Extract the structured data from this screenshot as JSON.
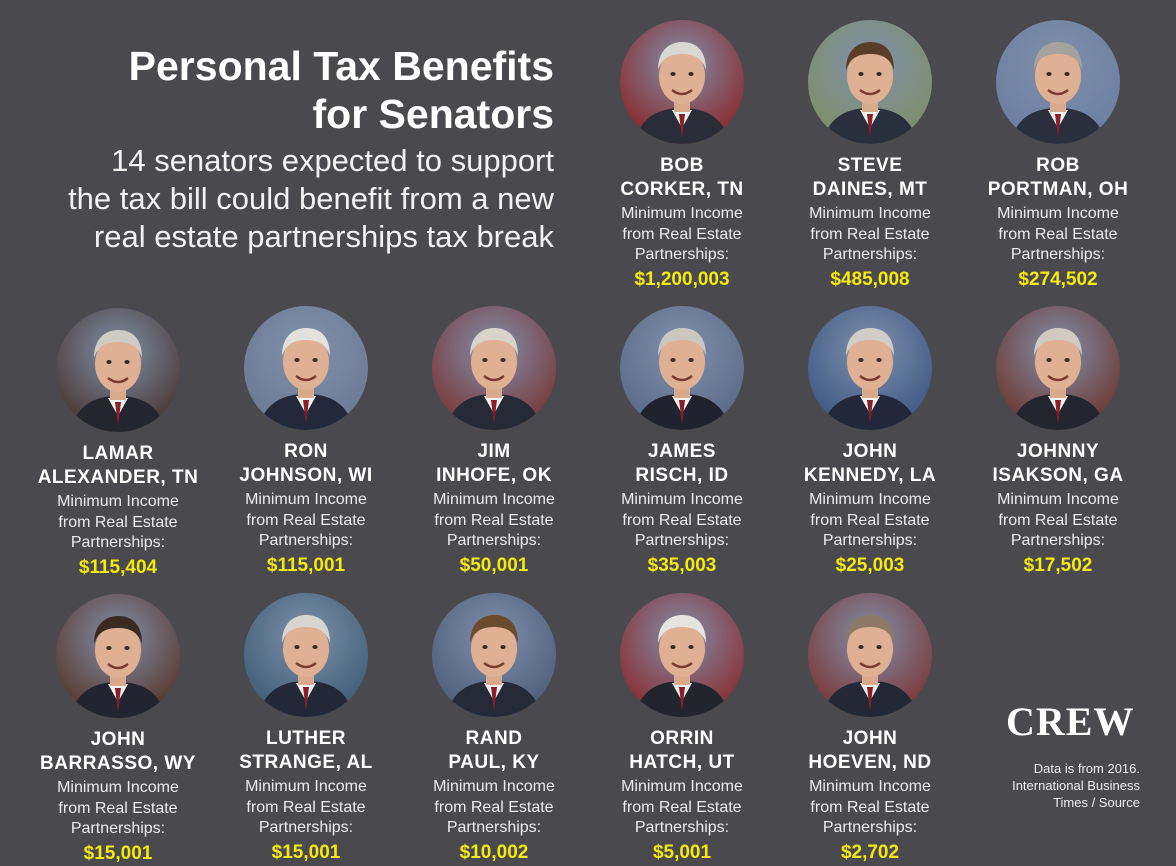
{
  "title_line1": "Personal Tax Benefits",
  "title_line2": "for Senators",
  "subtitle_line1": "14 senators expected to support",
  "subtitle_line2": "the tax bill could benefit from a new",
  "subtitle_line3": "real estate partnerships tax break",
  "label_line1": "Minimum Income",
  "label_line2": "from Real Estate",
  "label_line3": "Partnerships:",
  "logo_text": "CREW",
  "source_line1": "Data is from 2016.",
  "source_line2": "International Business",
  "source_line3": "Times / Source",
  "senators": [
    {
      "first": "BOB",
      "last": "CORKER, TN",
      "amount": "$1,200,003",
      "bg": "#8a2b2e",
      "hair": "#d9d7d2",
      "suit": "#2a2d38"
    },
    {
      "first": "STEVE",
      "last": "DAINES, MT",
      "amount": "$485,008",
      "bg": "#7e8f6a",
      "hair": "#5a3d28",
      "suit": "#2a2f3e"
    },
    {
      "first": "ROB",
      "last": "PORTMAN, OH",
      "amount": "$274,502",
      "bg": "#6c7fa2",
      "hair": "#a6a39e",
      "suit": "#2a2f3e"
    },
    {
      "first": "LAMAR",
      "last": "ALEXANDER, TN",
      "amount": "$115,404",
      "bg": "#4a3b36",
      "hair": "#cfccc5",
      "suit": "#23262f"
    },
    {
      "first": "RON",
      "last": "JOHNSON, WI",
      "amount": "$115,001",
      "bg": "#6d7a96",
      "hair": "#e3e1dc",
      "suit": "#23283a"
    },
    {
      "first": "JIM",
      "last": "INHOFE, OK",
      "amount": "$50,001",
      "bg": "#7a3a3c",
      "hair": "#d8d4cc",
      "suit": "#262a36"
    },
    {
      "first": "JAMES",
      "last": "RISCH, ID",
      "amount": "$35,003",
      "bg": "#5d6b8a",
      "hair": "#cac7c1",
      "suit": "#20232d"
    },
    {
      "first": "JOHN",
      "last": "KENNEDY, LA",
      "amount": "$25,003",
      "bg": "#3f5a86",
      "hair": "#d0cdc7",
      "suit": "#23273a"
    },
    {
      "first": "JOHNNY",
      "last": "ISAKSON, GA",
      "amount": "$17,502",
      "bg": "#6e3a34",
      "hair": "#cfcbc3",
      "suit": "#23262f"
    },
    {
      "first": "JOHN",
      "last": "BARRASSO, WY",
      "amount": "$15,001",
      "bg": "#5a3a2f",
      "hair": "#3a2a22",
      "suit": "#222530"
    },
    {
      "first": "LUTHER",
      "last": "STRANGE, AL",
      "amount": "$15,001",
      "bg": "#3f5f78",
      "hair": "#d7d5d0",
      "suit": "#222838"
    },
    {
      "first": "RAND",
      "last": "PAUL, KY",
      "amount": "$10,002",
      "bg": "#4f5f7c",
      "hair": "#6b4a2e",
      "suit": "#242a38"
    },
    {
      "first": "ORRIN",
      "last": "HATCH, UT",
      "amount": "$5,001",
      "bg": "#8a2f34",
      "hair": "#e6e4df",
      "suit": "#22252e"
    },
    {
      "first": "JOHN",
      "last": "HOEVEN, ND",
      "amount": "$2,702",
      "bg": "#7b3a3a",
      "hair": "#8c7a66",
      "suit": "#232836"
    }
  ]
}
